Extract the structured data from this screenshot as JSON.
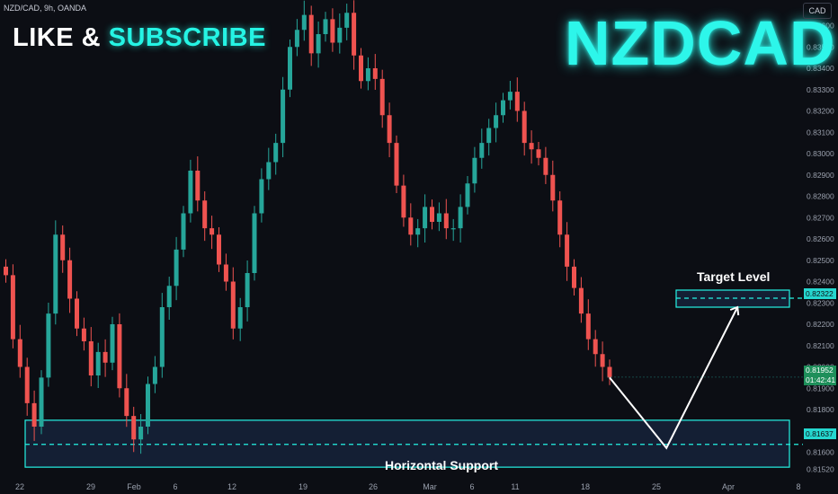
{
  "header": {
    "symbol_line": "NZD/CAD, 9h, OANDA",
    "currency_button": "CAD"
  },
  "overlay": {
    "like_text": "LIKE & ",
    "subscribe_text": "SUBSCRIBE",
    "pair_title": "NZDCAD",
    "target_label": "Target Level",
    "support_label": "Horizontal Support"
  },
  "price_tags": {
    "target": "0.82322",
    "current_price": "0.81952",
    "countdown": "01:42:41",
    "support": "0.81637"
  },
  "colors": {
    "up": "#26a69a",
    "down": "#ef5350",
    "accent": "#25f4e4",
    "zone_fill": "#16223a"
  },
  "chart_data": {
    "type": "candlestick",
    "symbol": "NZD/CAD",
    "timeframe": "9h",
    "source": "OANDA",
    "ylim": [
      0.8148,
      0.8372
    ],
    "y_ticks": [
      "0.83600",
      "0.83500",
      "0.83400",
      "0.83300",
      "0.83200",
      "0.83100",
      "0.83000",
      "0.82900",
      "0.82800",
      "0.82700",
      "0.82600",
      "0.82500",
      "0.82400",
      "0.82300",
      "0.82200",
      "0.82100",
      "0.82000",
      "0.81900",
      "0.81800",
      "0.81700",
      "0.81600",
      "0.81520"
    ],
    "x_ticks": [
      "22",
      "29",
      "Feb",
      "6",
      "12",
      "19",
      "26",
      "Mar",
      "6",
      "11",
      "18",
      "25",
      "Apr",
      "8"
    ],
    "close_path": [
      0.8243,
      0.8213,
      0.82,
      0.8183,
      0.8172,
      0.8195,
      0.8225,
      0.8262,
      0.825,
      0.8232,
      0.8218,
      0.8212,
      0.8196,
      0.8207,
      0.8202,
      0.822,
      0.819,
      0.8177,
      0.8166,
      0.8172,
      0.8192,
      0.82,
      0.8228,
      0.8238,
      0.8255,
      0.8272,
      0.8292,
      0.8278,
      0.8265,
      0.8262,
      0.8248,
      0.824,
      0.8218,
      0.8228,
      0.8244,
      0.8272,
      0.8288,
      0.8296,
      0.8305,
      0.833,
      0.835,
      0.8358,
      0.8365,
      0.8347,
      0.8356,
      0.8363,
      0.8352,
      0.8359,
      0.8366,
      0.8346,
      0.8334,
      0.834,
      0.8335,
      0.8318,
      0.8305,
      0.8285,
      0.827,
      0.8262,
      0.8265,
      0.8275,
      0.8268,
      0.8272,
      0.8265,
      0.8265,
      0.8275,
      0.8286,
      0.8298,
      0.8305,
      0.8312,
      0.8318,
      0.8325,
      0.8329,
      0.832,
      0.8305,
      0.8302,
      0.8298,
      0.829,
      0.8278,
      0.8262,
      0.8247,
      0.8237,
      0.8225,
      0.8213,
      0.8206,
      0.82,
      0.8195
    ],
    "zones": [
      {
        "label": "Target Level",
        "low": 0.8228,
        "high": 0.8236,
        "level": 0.82322
      },
      {
        "label": "Horizontal Support",
        "low": 0.8153,
        "high": 0.8175,
        "level": 0.81637
      }
    ],
    "projection": [
      {
        "x_index": 85,
        "y": 0.8195
      },
      {
        "x_index": 93,
        "y": 0.8162
      },
      {
        "x_index": 103,
        "y": 0.8228
      }
    ],
    "current_price": 0.81952
  }
}
